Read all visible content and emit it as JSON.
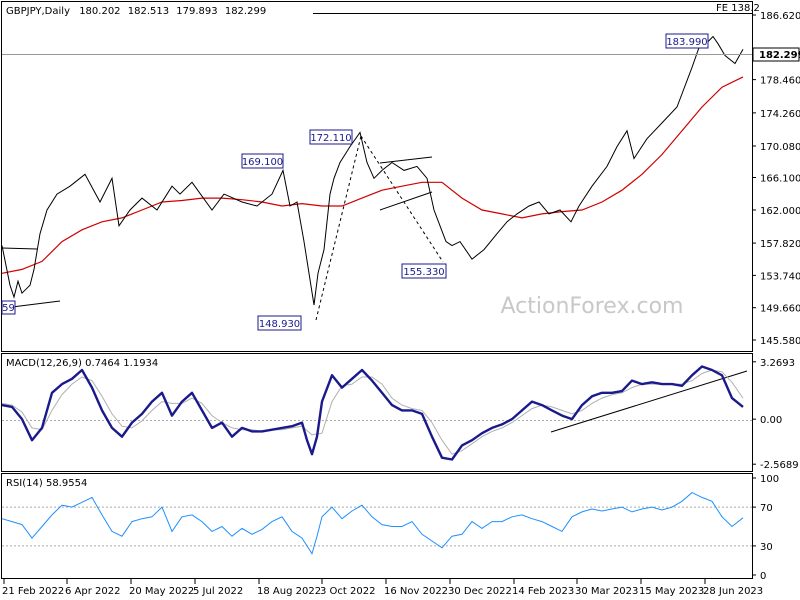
{
  "chart_data": {
    "type": "line",
    "symbol": "GBPJPY,Daily",
    "ohlc": [
      "180.202",
      "182.513",
      "179.893",
      "182.299"
    ],
    "watermark": "ActionForex.com",
    "fe_label": "FE 138.2",
    "current_price": "182.299",
    "annotations": [
      "169.100",
      "172.110",
      "148.930",
      "155.330",
      "183.990",
      "59"
    ],
    "x_ticks": [
      "21 Feb 2022",
      "6 Apr 2022",
      "20 May 2022",
      "5 Jul 2022",
      "18 Aug 2022",
      "3 Oct 2022",
      "16 Nov 2022",
      "30 Dec 2022",
      "14 Feb 2023",
      "30 Mar 2023",
      "15 May 2023",
      "28 Jun 2023"
    ],
    "price_panel": {
      "y_ticks": [
        "186.620",
        "182.299",
        "178.460",
        "174.260",
        "170.080",
        "166.100",
        "162.000",
        "157.820",
        "153.740",
        "149.660",
        "145.580"
      ],
      "y_tick_values": [
        186.62,
        182.299,
        178.46,
        174.26,
        170.08,
        166.1,
        162.0,
        157.82,
        153.74,
        149.66,
        145.58
      ],
      "ylim": [
        145.58,
        186.62
      ],
      "price_series_x": [
        0,
        4,
        8,
        12,
        16,
        20,
        24,
        28,
        32,
        38,
        45,
        55,
        68,
        83,
        98,
        110,
        117,
        128,
        140,
        155,
        170,
        178,
        190,
        210,
        222,
        240,
        255,
        270,
        281,
        288,
        295,
        302,
        312,
        316,
        322,
        328,
        332,
        338,
        348,
        358,
        365,
        372,
        380,
        390,
        402,
        415,
        425,
        432,
        438,
        444,
        450,
        458,
        470,
        482,
        495,
        505,
        515,
        527,
        537,
        547,
        558,
        569,
        577,
        590,
        605,
        615,
        625,
        632,
        645,
        660,
        675,
        690,
        697,
        704,
        711,
        716,
        723,
        733,
        741
      ],
      "price_series_y": [
        157.5,
        155.0,
        152.5,
        151.0,
        153.0,
        151.5,
        152.0,
        152.5,
        154.5,
        159.0,
        162.0,
        164.0,
        165.0,
        166.5,
        163.0,
        166.0,
        160.0,
        162.0,
        163.5,
        162.0,
        165.0,
        164.0,
        165.5,
        162.0,
        164.0,
        163.0,
        162.5,
        164.0,
        167.0,
        162.5,
        163.0,
        158.0,
        150.0,
        154.0,
        157.0,
        164.0,
        166.0,
        168.0,
        170.0,
        171.8,
        168.0,
        166.0,
        167.0,
        168.0,
        167.0,
        167.5,
        166.0,
        162.0,
        160.0,
        158.0,
        157.5,
        158.0,
        155.8,
        157.0,
        159.0,
        160.5,
        161.5,
        162.5,
        163.0,
        161.5,
        162.0,
        160.5,
        162.5,
        165.0,
        167.5,
        170.0,
        172.0,
        168.5,
        171.0,
        173.0,
        175.0,
        180.0,
        182.5,
        183.0,
        183.9,
        183.0,
        181.5,
        180.5,
        182.3
      ],
      "ma_series_x": [
        0,
        20,
        40,
        60,
        80,
        100,
        120,
        140,
        160,
        180,
        200,
        220,
        240,
        260,
        280,
        300,
        320,
        340,
        360,
        380,
        400,
        420,
        440,
        460,
        480,
        500,
        520,
        540,
        560,
        580,
        600,
        620,
        640,
        660,
        680,
        700,
        720,
        741
      ],
      "ma_series_y": [
        154.0,
        154.5,
        155.5,
        158.0,
        159.5,
        160.5,
        161.0,
        162.0,
        163.0,
        163.2,
        163.5,
        163.5,
        163.3,
        163.0,
        162.5,
        162.8,
        162.5,
        162.5,
        163.5,
        164.5,
        165.0,
        165.5,
        165.5,
        163.5,
        162.0,
        161.5,
        161.0,
        161.5,
        161.8,
        162.0,
        163.0,
        164.5,
        166.5,
        169.0,
        172.0,
        175.0,
        177.5,
        178.8
      ]
    },
    "macd_panel": {
      "label": "MACD(12,26,9) 0.7464 1.1934",
      "y_ticks": [
        "3.2693",
        "0.00",
        "-2.5689"
      ],
      "y_tick_values": [
        3.2693,
        0,
        -2.5689
      ],
      "ylim": [
        -2.9,
        3.6
      ],
      "macd_x": [
        0,
        10,
        20,
        30,
        40,
        50,
        60,
        70,
        80,
        90,
        100,
        110,
        120,
        130,
        140,
        150,
        160,
        170,
        180,
        190,
        200,
        210,
        220,
        230,
        240,
        250,
        260,
        270,
        280,
        290,
        300,
        305,
        310,
        315,
        320,
        330,
        340,
        350,
        360,
        370,
        380,
        390,
        400,
        410,
        420,
        430,
        440,
        450,
        460,
        470,
        480,
        490,
        500,
        510,
        520,
        530,
        540,
        550,
        560,
        570,
        580,
        590,
        600,
        610,
        620,
        630,
        640,
        650,
        660,
        670,
        680,
        690,
        700,
        710,
        720,
        730,
        741
      ],
      "macd_y": [
        0.8,
        0.7,
        0.0,
        -1.2,
        -0.5,
        1.5,
        2.0,
        2.3,
        2.8,
        1.8,
        0.5,
        -0.5,
        -1.0,
        -0.2,
        0.3,
        1.0,
        1.5,
        0.2,
        1.0,
        1.5,
        0.5,
        -0.5,
        -0.2,
        -1.0,
        -0.5,
        -0.7,
        -0.7,
        -0.6,
        -0.5,
        -0.4,
        -0.2,
        -1.2,
        -2.0,
        -1.0,
        1.0,
        2.5,
        1.8,
        2.3,
        2.8,
        2.2,
        1.5,
        0.8,
        0.5,
        0.5,
        0.3,
        -1.0,
        -2.2,
        -2.3,
        -1.5,
        -1.2,
        -0.8,
        -0.5,
        -0.3,
        0.0,
        0.5,
        1.0,
        0.8,
        0.5,
        0.2,
        0.0,
        0.8,
        1.3,
        1.5,
        1.5,
        1.6,
        2.2,
        2.0,
        2.1,
        2.0,
        2.0,
        1.9,
        2.5,
        3.0,
        2.8,
        2.5,
        1.2,
        0.7
      ],
      "signal_x": [
        0,
        10,
        20,
        30,
        40,
        50,
        60,
        70,
        80,
        90,
        100,
        110,
        120,
        130,
        140,
        150,
        160,
        170,
        180,
        190,
        200,
        210,
        220,
        230,
        240,
        250,
        260,
        270,
        280,
        290,
        300,
        310,
        320,
        330,
        340,
        350,
        360,
        370,
        380,
        390,
        400,
        410,
        420,
        430,
        440,
        450,
        460,
        470,
        480,
        490,
        500,
        510,
        520,
        530,
        540,
        550,
        560,
        570,
        580,
        590,
        600,
        610,
        620,
        630,
        640,
        650,
        660,
        670,
        680,
        690,
        700,
        710,
        720,
        730,
        741
      ],
      "signal_y": [
        0.9,
        0.8,
        0.4,
        -0.5,
        -0.6,
        0.5,
        1.4,
        2.0,
        2.4,
        2.2,
        1.3,
        0.3,
        -0.4,
        -0.5,
        -0.1,
        0.5,
        1.0,
        0.9,
        0.9,
        1.2,
        0.9,
        0.2,
        -0.2,
        -0.5,
        -0.6,
        -0.6,
        -0.7,
        -0.6,
        -0.6,
        -0.5,
        -0.4,
        -0.9,
        -0.8,
        1.0,
        1.9,
        2.0,
        2.4,
        2.4,
        2.0,
        1.2,
        0.8,
        0.6,
        0.5,
        -0.2,
        -1.2,
        -2.0,
        -1.8,
        -1.4,
        -1.0,
        -0.7,
        -0.5,
        -0.2,
        0.2,
        0.6,
        0.8,
        0.7,
        0.5,
        0.3,
        0.5,
        0.9,
        1.2,
        1.4,
        1.5,
        1.8,
        2.0,
        2.0,
        2.0,
        2.0,
        2.0,
        2.2,
        2.6,
        2.8,
        2.7,
        2.1,
        1.2
      ]
    },
    "rsi_panel": {
      "label": "RSI(14) 58.9554",
      "y_ticks": [
        "100",
        "70",
        "30",
        "0"
      ],
      "y_tick_values": [
        100,
        70,
        30,
        0
      ],
      "ylim": [
        0,
        100
      ],
      "rsi_x": [
        0,
        10,
        20,
        30,
        40,
        50,
        60,
        70,
        80,
        90,
        100,
        110,
        120,
        130,
        140,
        150,
        160,
        170,
        180,
        190,
        200,
        210,
        220,
        230,
        240,
        250,
        260,
        270,
        280,
        290,
        300,
        305,
        310,
        315,
        320,
        330,
        340,
        350,
        360,
        370,
        380,
        390,
        400,
        410,
        420,
        430,
        440,
        450,
        460,
        470,
        480,
        490,
        500,
        510,
        520,
        530,
        540,
        550,
        560,
        570,
        580,
        590,
        600,
        610,
        620,
        630,
        640,
        650,
        660,
        670,
        680,
        690,
        700,
        710,
        720,
        730,
        741
      ],
      "rsi_y": [
        58,
        55,
        52,
        38,
        50,
        62,
        72,
        70,
        75,
        80,
        62,
        45,
        40,
        55,
        58,
        60,
        70,
        45,
        60,
        62,
        55,
        45,
        50,
        40,
        48,
        42,
        47,
        55,
        60,
        45,
        38,
        30,
        22,
        40,
        60,
        70,
        58,
        66,
        72,
        60,
        52,
        50,
        50,
        55,
        42,
        35,
        28,
        40,
        42,
        55,
        48,
        55,
        55,
        60,
        62,
        58,
        55,
        50,
        45,
        60,
        65,
        68,
        66,
        68,
        70,
        65,
        68,
        70,
        67,
        70,
        76,
        85,
        80,
        76,
        60,
        50,
        59
      ]
    }
  }
}
